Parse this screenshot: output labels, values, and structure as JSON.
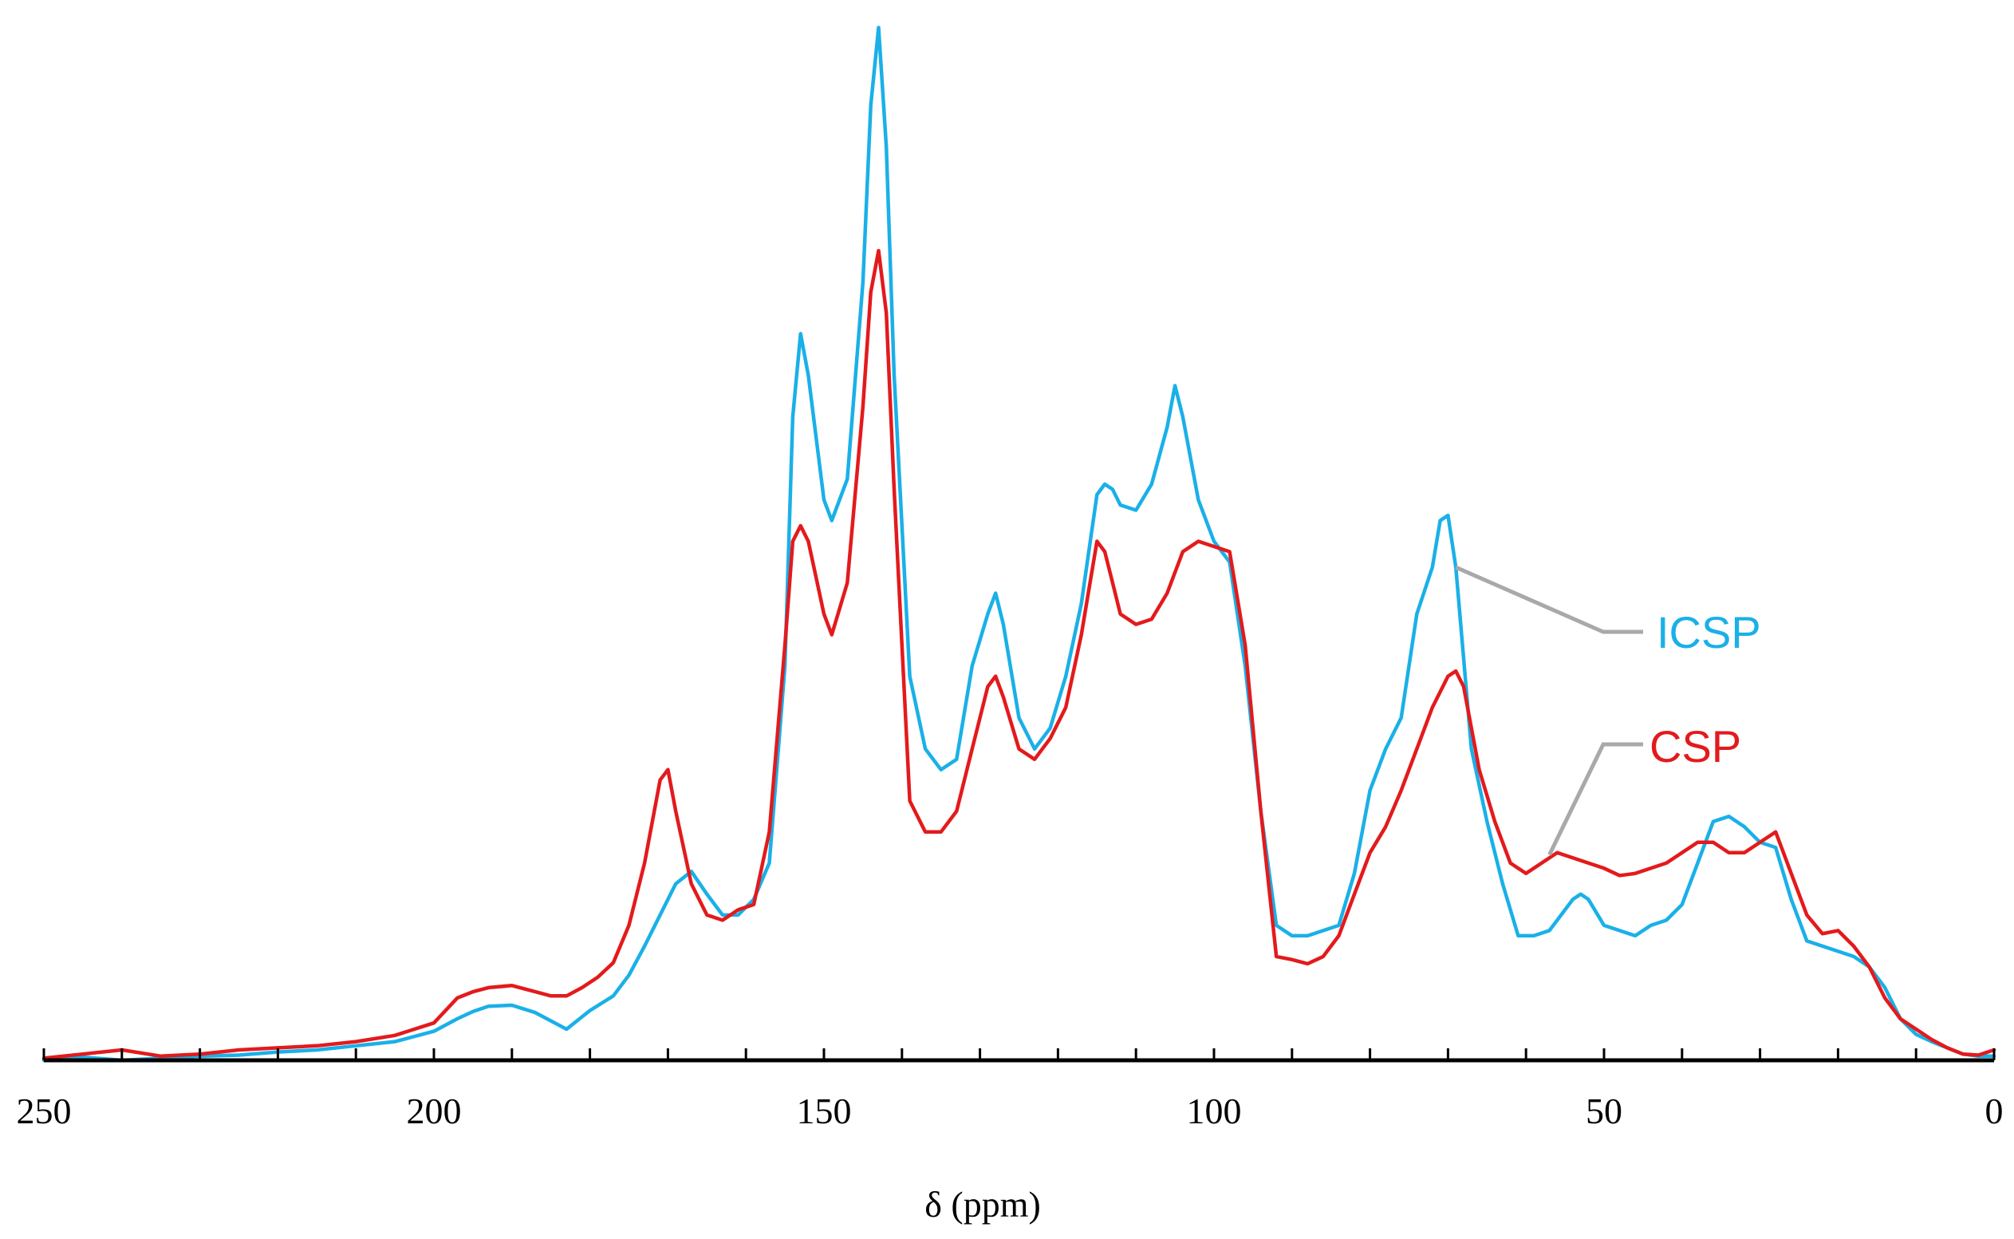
{
  "chart_data": {
    "type": "line",
    "title": "",
    "xlabel": "δ (ppm)",
    "ylabel": "",
    "xlim": [
      250,
      0
    ],
    "ylim": [
      0,
      1
    ],
    "x_reversed": true,
    "grid": false,
    "x_ticks": [
      250,
      200,
      150,
      100,
      50,
      0
    ],
    "x_tick_labels": [
      "250",
      "200",
      "150",
      "100",
      "50",
      "0"
    ],
    "minor_tick_step": 10,
    "legend": "right, leader lines",
    "series": [
      {
        "name": "ICSP",
        "color": "#1ab0e8",
        "label_at": [
          69,
          0.475
        ],
        "points": [
          [
            250,
            0.0
          ],
          [
            245,
            0.003
          ],
          [
            240,
            0.0
          ],
          [
            235,
            0.002
          ],
          [
            230,
            0.004
          ],
          [
            225,
            0.005
          ],
          [
            220,
            0.008
          ],
          [
            215,
            0.01
          ],
          [
            210,
            0.014
          ],
          [
            205,
            0.018
          ],
          [
            200,
            0.028
          ],
          [
            197,
            0.04
          ],
          [
            195,
            0.047
          ],
          [
            193,
            0.052
          ],
          [
            190,
            0.053
          ],
          [
            187,
            0.046
          ],
          [
            185,
            0.038
          ],
          [
            183,
            0.03
          ],
          [
            180,
            0.048
          ],
          [
            177,
            0.062
          ],
          [
            175,
            0.082
          ],
          [
            173,
            0.11
          ],
          [
            171,
            0.14
          ],
          [
            169,
            0.17
          ],
          [
            167,
            0.182
          ],
          [
            165,
            0.16
          ],
          [
            163,
            0.14
          ],
          [
            161,
            0.14
          ],
          [
            159,
            0.155
          ],
          [
            157,
            0.19
          ],
          [
            155,
            0.38
          ],
          [
            154,
            0.62
          ],
          [
            153,
            0.7
          ],
          [
            152,
            0.66
          ],
          [
            150,
            0.54
          ],
          [
            149,
            0.52
          ],
          [
            147,
            0.56
          ],
          [
            145,
            0.75
          ],
          [
            144,
            0.92
          ],
          [
            143,
            0.995
          ],
          [
            142,
            0.88
          ],
          [
            141,
            0.66
          ],
          [
            139,
            0.37
          ],
          [
            137,
            0.3
          ],
          [
            135,
            0.28
          ],
          [
            133,
            0.29
          ],
          [
            131,
            0.38
          ],
          [
            129,
            0.43
          ],
          [
            128,
            0.45
          ],
          [
            127,
            0.42
          ],
          [
            125,
            0.33
          ],
          [
            123,
            0.3
          ],
          [
            121,
            0.32
          ],
          [
            119,
            0.37
          ],
          [
            117,
            0.44
          ],
          [
            115,
            0.545
          ],
          [
            114,
            0.555
          ],
          [
            113,
            0.55
          ],
          [
            112,
            0.535
          ],
          [
            110,
            0.53
          ],
          [
            108,
            0.555
          ],
          [
            106,
            0.61
          ],
          [
            105,
            0.65
          ],
          [
            104,
            0.62
          ],
          [
            102,
            0.54
          ],
          [
            100,
            0.5
          ],
          [
            98,
            0.48
          ],
          [
            96,
            0.38
          ],
          [
            94,
            0.24
          ],
          [
            92,
            0.13
          ],
          [
            90,
            0.12
          ],
          [
            88,
            0.12
          ],
          [
            86,
            0.125
          ],
          [
            84,
            0.13
          ],
          [
            82,
            0.18
          ],
          [
            80,
            0.26
          ],
          [
            78,
            0.3
          ],
          [
            76,
            0.33
          ],
          [
            74,
            0.43
          ],
          [
            72,
            0.475
          ],
          [
            71,
            0.52
          ],
          [
            70,
            0.525
          ],
          [
            69,
            0.475
          ],
          [
            67,
            0.3
          ],
          [
            65,
            0.23
          ],
          [
            63,
            0.17
          ],
          [
            61,
            0.12
          ],
          [
            59,
            0.12
          ],
          [
            57,
            0.125
          ],
          [
            55,
            0.145
          ],
          [
            54,
            0.155
          ],
          [
            53,
            0.16
          ],
          [
            52,
            0.155
          ],
          [
            50,
            0.13
          ],
          [
            48,
            0.125
          ],
          [
            46,
            0.12
          ],
          [
            44,
            0.13
          ],
          [
            42,
            0.135
          ],
          [
            40,
            0.15
          ],
          [
            38,
            0.19
          ],
          [
            36,
            0.23
          ],
          [
            34,
            0.235
          ],
          [
            32,
            0.225
          ],
          [
            30,
            0.21
          ],
          [
            28,
            0.205
          ],
          [
            26,
            0.155
          ],
          [
            24,
            0.115
          ],
          [
            22,
            0.11
          ],
          [
            20,
            0.105
          ],
          [
            18,
            0.1
          ],
          [
            16,
            0.09
          ],
          [
            14,
            0.07
          ],
          [
            12,
            0.04
          ],
          [
            10,
            0.025
          ],
          [
            8,
            0.018
          ],
          [
            6,
            0.012
          ],
          [
            4,
            0.006
          ],
          [
            2,
            0.004
          ],
          [
            0,
            0.004
          ]
        ]
      },
      {
        "name": "CSP",
        "color": "#e31a1c",
        "label_at": [
          57,
          0.198
        ],
        "points": [
          [
            250,
            0.002
          ],
          [
            245,
            0.006
          ],
          [
            240,
            0.01
          ],
          [
            235,
            0.004
          ],
          [
            230,
            0.006
          ],
          [
            225,
            0.01
          ],
          [
            220,
            0.012
          ],
          [
            215,
            0.014
          ],
          [
            210,
            0.018
          ],
          [
            205,
            0.024
          ],
          [
            200,
            0.036
          ],
          [
            197,
            0.06
          ],
          [
            195,
            0.066
          ],
          [
            193,
            0.07
          ],
          [
            190,
            0.072
          ],
          [
            187,
            0.066
          ],
          [
            185,
            0.062
          ],
          [
            183,
            0.062
          ],
          [
            181,
            0.07
          ],
          [
            179,
            0.08
          ],
          [
            177,
            0.094
          ],
          [
            175,
            0.13
          ],
          [
            173,
            0.19
          ],
          [
            171,
            0.27
          ],
          [
            170,
            0.28
          ],
          [
            169,
            0.24
          ],
          [
            167,
            0.17
          ],
          [
            165,
            0.14
          ],
          [
            163,
            0.135
          ],
          [
            161,
            0.145
          ],
          [
            159,
            0.15
          ],
          [
            157,
            0.22
          ],
          [
            155,
            0.4
          ],
          [
            154,
            0.5
          ],
          [
            153,
            0.515
          ],
          [
            152,
            0.5
          ],
          [
            150,
            0.43
          ],
          [
            149,
            0.41
          ],
          [
            147,
            0.46
          ],
          [
            145,
            0.63
          ],
          [
            144,
            0.74
          ],
          [
            143,
            0.78
          ],
          [
            142,
            0.72
          ],
          [
            141,
            0.55
          ],
          [
            139,
            0.25
          ],
          [
            137,
            0.22
          ],
          [
            135,
            0.22
          ],
          [
            133,
            0.24
          ],
          [
            131,
            0.3
          ],
          [
            129,
            0.36
          ],
          [
            128,
            0.37
          ],
          [
            127,
            0.35
          ],
          [
            125,
            0.3
          ],
          [
            123,
            0.29
          ],
          [
            121,
            0.31
          ],
          [
            119,
            0.34
          ],
          [
            117,
            0.41
          ],
          [
            115,
            0.5
          ],
          [
            114,
            0.49
          ],
          [
            113,
            0.46
          ],
          [
            112,
            0.43
          ],
          [
            110,
            0.42
          ],
          [
            108,
            0.425
          ],
          [
            106,
            0.45
          ],
          [
            104,
            0.49
          ],
          [
            102,
            0.5
          ],
          [
            100,
            0.495
          ],
          [
            98,
            0.49
          ],
          [
            96,
            0.4
          ],
          [
            94,
            0.24
          ],
          [
            92,
            0.1
          ],
          [
            90,
            0.097
          ],
          [
            88,
            0.093
          ],
          [
            86,
            0.1
          ],
          [
            84,
            0.12
          ],
          [
            82,
            0.16
          ],
          [
            80,
            0.2
          ],
          [
            78,
            0.225
          ],
          [
            76,
            0.26
          ],
          [
            74,
            0.3
          ],
          [
            72,
            0.34
          ],
          [
            70,
            0.37
          ],
          [
            69,
            0.375
          ],
          [
            68,
            0.36
          ],
          [
            66,
            0.28
          ],
          [
            64,
            0.23
          ],
          [
            62,
            0.19
          ],
          [
            60,
            0.18
          ],
          [
            58,
            0.19
          ],
          [
            56,
            0.2
          ],
          [
            54,
            0.195
          ],
          [
            52,
            0.19
          ],
          [
            50,
            0.185
          ],
          [
            48,
            0.178
          ],
          [
            46,
            0.18
          ],
          [
            44,
            0.185
          ],
          [
            42,
            0.19
          ],
          [
            40,
            0.2
          ],
          [
            38,
            0.21
          ],
          [
            36,
            0.21
          ],
          [
            34,
            0.2
          ],
          [
            32,
            0.2
          ],
          [
            30,
            0.21
          ],
          [
            28,
            0.22
          ],
          [
            26,
            0.18
          ],
          [
            24,
            0.14
          ],
          [
            22,
            0.122
          ],
          [
            20,
            0.125
          ],
          [
            18,
            0.11
          ],
          [
            16,
            0.09
          ],
          [
            14,
            0.06
          ],
          [
            12,
            0.04
          ],
          [
            10,
            0.03
          ],
          [
            8,
            0.02
          ],
          [
            6,
            0.012
          ],
          [
            4,
            0.006
          ],
          [
            2,
            0.005
          ],
          [
            0,
            0.01
          ]
        ]
      }
    ]
  }
}
